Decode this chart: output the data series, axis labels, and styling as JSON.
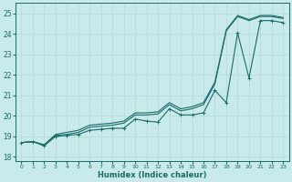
{
  "xlabel": "Humidex (Indice chaleur)",
  "xlim": [
    -0.5,
    23.5
  ],
  "ylim": [
    17.8,
    25.5
  ],
  "yticks": [
    18,
    19,
    20,
    21,
    22,
    23,
    24,
    25
  ],
  "xticks": [
    0,
    1,
    2,
    3,
    4,
    5,
    6,
    7,
    8,
    9,
    10,
    11,
    12,
    13,
    14,
    15,
    16,
    17,
    18,
    19,
    20,
    21,
    22,
    23
  ],
  "bg_color": "#c8eaea",
  "grid_color": "#b8dada",
  "line_color": "#1a6b6b",
  "line1_y": [
    18.7,
    18.75,
    18.55,
    19.0,
    19.05,
    19.1,
    19.3,
    19.35,
    19.4,
    19.4,
    19.85,
    19.75,
    19.7,
    20.35,
    20.05,
    20.05,
    20.15,
    21.25,
    20.65,
    24.05,
    21.85,
    24.65,
    24.65,
    24.55
  ],
  "line2_y": [
    18.7,
    18.75,
    18.55,
    19.05,
    19.1,
    19.2,
    19.45,
    19.5,
    19.55,
    19.65,
    20.05,
    20.05,
    20.1,
    20.55,
    20.25,
    20.35,
    20.55,
    21.55,
    24.15,
    24.85,
    24.65,
    24.85,
    24.85,
    24.75
  ],
  "line3_y": [
    18.7,
    18.75,
    18.6,
    19.1,
    19.2,
    19.3,
    19.55,
    19.6,
    19.65,
    19.75,
    20.15,
    20.15,
    20.2,
    20.65,
    20.35,
    20.45,
    20.65,
    21.65,
    24.2,
    24.9,
    24.7,
    24.9,
    24.9,
    24.8
  ]
}
